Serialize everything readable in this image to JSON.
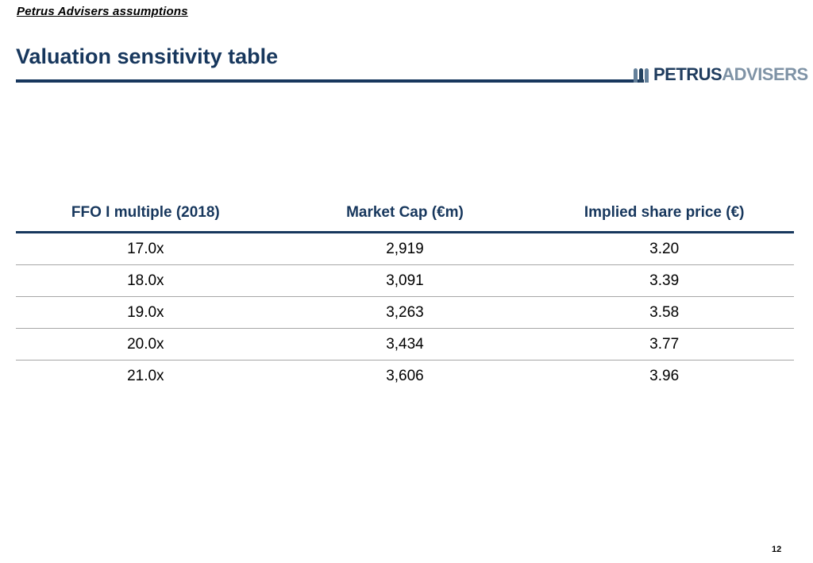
{
  "header": {
    "eyebrow": "Petrus Advisers assumptions",
    "title": "Valuation sensitivity table"
  },
  "logo": {
    "primary": "PETRUS",
    "secondary": "ADVISERS",
    "icon": "three-bars-book-icon"
  },
  "table": {
    "headers": [
      "FFO I multiple (2018)",
      "Market Cap (€m)",
      "Implied share price (€)"
    ],
    "rows": [
      [
        "17.0x",
        "2,919",
        "3.20"
      ],
      [
        "18.0x",
        "3,091",
        "3.39"
      ],
      [
        "19.0x",
        "3,263",
        "3.58"
      ],
      [
        "20.0x",
        "3,434",
        "3.77"
      ],
      [
        "21.0x",
        "3,606",
        "3.96"
      ]
    ]
  },
  "footer": {
    "page_number": "12"
  },
  "colors": {
    "navy": "#17375d",
    "logo_primary": "#1f3c5e",
    "logo_secondary": "#7f93a6",
    "row_separator": "#a6a6a6"
  },
  "chart_data": {
    "type": "table",
    "title": "Valuation sensitivity table",
    "columns": [
      "FFO I multiple (2018)",
      "Market Cap (€m)",
      "Implied share price (€)"
    ],
    "rows": [
      {
        "ffo_multiple": "17.0x",
        "market_cap_eur_m": 2919,
        "implied_share_price_eur": 3.2
      },
      {
        "ffo_multiple": "18.0x",
        "market_cap_eur_m": 3091,
        "implied_share_price_eur": 3.39
      },
      {
        "ffo_multiple": "19.0x",
        "market_cap_eur_m": 3263,
        "implied_share_price_eur": 3.58
      },
      {
        "ffo_multiple": "20.0x",
        "market_cap_eur_m": 3434,
        "implied_share_price_eur": 3.77
      },
      {
        "ffo_multiple": "21.0x",
        "market_cap_eur_m": 3606,
        "implied_share_price_eur": 3.96
      }
    ]
  }
}
